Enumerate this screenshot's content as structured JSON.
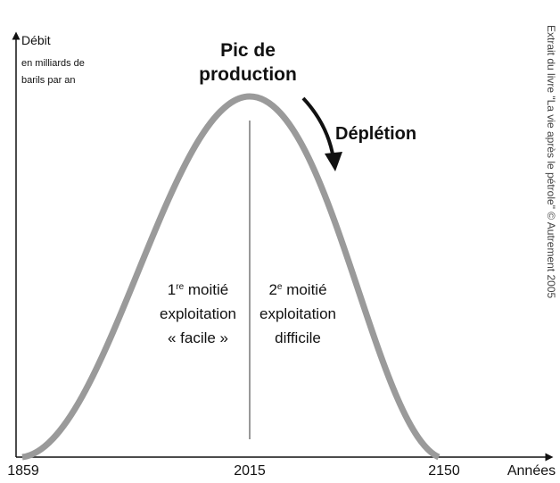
{
  "y_label": {
    "title": "Débit",
    "line1": "en milliards de",
    "line2": "barils par an"
  },
  "peak": {
    "line1": "Pic de",
    "line2": "production"
  },
  "depletion": "Déplétion",
  "left_half": {
    "number": "1",
    "suffix": "re",
    "word": " moitié",
    "line2": "exploitation",
    "line3": "« facile »"
  },
  "right_half": {
    "number": "2",
    "suffix": "e",
    "word": " moitié",
    "line2": "exploitation",
    "line3": "difficile"
  },
  "x_labels": [
    "1859",
    "2015",
    "2150"
  ],
  "x_title": "Années",
  "credit": "Extrait du livre \"La vie après le pétrole\" © Autrement 2005"
}
